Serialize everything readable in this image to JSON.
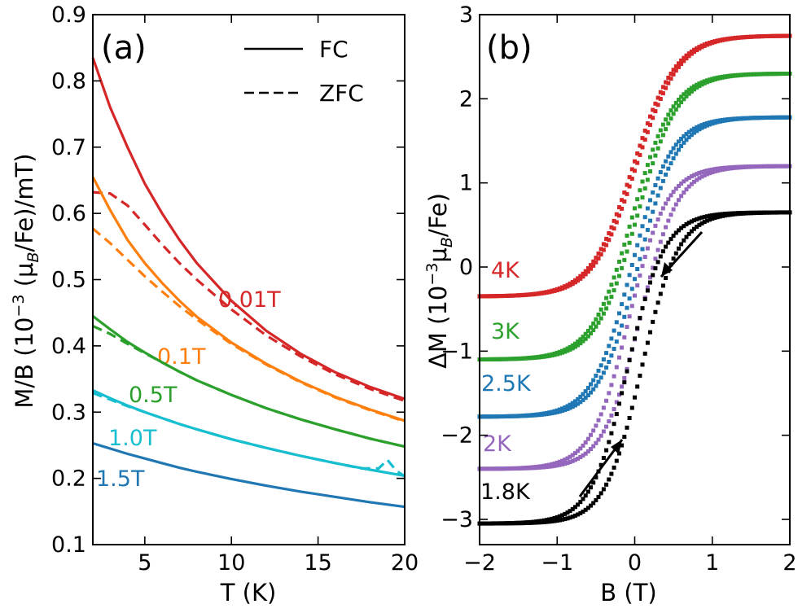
{
  "chart_data": [
    {
      "panel": "(a)",
      "type": "line",
      "xlabel": "T (K)",
      "ylabel_parts": [
        "M/B (10",
        "−3",
        " (μ",
        "B",
        "/Fe)/mT)"
      ],
      "xlim": [
        2,
        20
      ],
      "ylim": [
        0.1,
        0.9
      ],
      "xticks": [
        5,
        10,
        15,
        20
      ],
      "yticks": [
        0.1,
        0.2,
        0.3,
        0.4,
        0.5,
        0.6,
        0.7,
        0.8,
        0.9
      ],
      "legend": {
        "position": "top-right",
        "entries": [
          {
            "label": "FC",
            "style": "solid"
          },
          {
            "label": "ZFC",
            "style": "dashed"
          }
        ]
      },
      "series": [
        {
          "name": "0.01T",
          "color": "#d62728",
          "label": "0.01T",
          "fc": {
            "x": [
              2,
              3,
              4,
              5,
              6,
              7,
              8,
              10,
              12,
              14,
              16,
              18,
              20
            ],
            "y": [
              0.835,
              0.76,
              0.7,
              0.645,
              0.6,
              0.56,
              0.525,
              0.468,
              0.423,
              0.388,
              0.36,
              0.338,
              0.32
            ]
          },
          "zfc": {
            "x": [
              2,
              3,
              4,
              5,
              6,
              7,
              8,
              10,
              12,
              14,
              16,
              18,
              20
            ],
            "y": [
              0.632,
              0.63,
              0.612,
              0.583,
              0.553,
              0.525,
              0.5,
              0.455,
              0.416,
              0.384,
              0.357,
              0.335,
              0.317
            ]
          }
        },
        {
          "name": "0.1T",
          "color": "#ff7f0e",
          "label": "0.1T",
          "fc": {
            "x": [
              2,
              3,
              4,
              5,
              6,
              7,
              8,
              10,
              12,
              14,
              16,
              18,
              20
            ],
            "y": [
              0.655,
              0.605,
              0.56,
              0.525,
              0.495,
              0.468,
              0.444,
              0.405,
              0.373,
              0.346,
              0.323,
              0.304,
              0.287
            ]
          },
          "zfc": {
            "x": [
              2,
              3,
              4,
              5,
              6,
              7,
              8,
              10,
              12,
              14,
              16,
              18,
              20
            ],
            "y": [
              0.577,
              0.555,
              0.53,
              0.505,
              0.482,
              0.46,
              0.44,
              0.403,
              0.372,
              0.345,
              0.322,
              0.303,
              0.286
            ]
          }
        },
        {
          "name": "0.5T",
          "color": "#2ca02c",
          "label": "0.5T",
          "fc": {
            "x": [
              2,
              3,
              4,
              5,
              6,
              7,
              8,
              10,
              12,
              14,
              16,
              18,
              20
            ],
            "y": [
              0.445,
              0.425,
              0.406,
              0.39,
              0.375,
              0.361,
              0.348,
              0.326,
              0.306,
              0.289,
              0.274,
              0.26,
              0.248
            ]
          },
          "zfc": {
            "x": [
              2,
              3,
              4,
              5,
              6,
              7,
              8,
              10,
              12,
              14,
              16,
              18,
              20
            ],
            "y": [
              0.43,
              0.418,
              0.403,
              0.389,
              0.375,
              0.361,
              0.348,
              0.326,
              0.306,
              0.289,
              0.274,
              0.26,
              0.248
            ]
          }
        },
        {
          "name": "1.0T",
          "color": "#17becf",
          "label": "1.0T",
          "fc": {
            "x": [
              2,
              3,
              4,
              5,
              6,
              7,
              8,
              10,
              12,
              14,
              16,
              18,
              20
            ],
            "y": [
              0.333,
              0.321,
              0.31,
              0.3,
              0.291,
              0.282,
              0.274,
              0.259,
              0.246,
              0.234,
              0.223,
              0.213,
              0.204
            ]
          },
          "zfc": {
            "x": [
              2,
              3,
              4,
              5,
              6,
              7,
              8,
              10,
              12,
              14,
              16,
              17.5,
              18.5,
              19,
              19.5,
              20
            ],
            "y": [
              0.329,
              0.319,
              0.309,
              0.3,
              0.291,
              0.282,
              0.274,
              0.259,
              0.246,
              0.234,
              0.223,
              0.215,
              0.215,
              0.228,
              0.212,
              0.203
            ]
          }
        },
        {
          "name": "1.5T",
          "color": "#1f77b4",
          "label": "1.5T",
          "fc": {
            "x": [
              2,
              3,
              4,
              5,
              6,
              7,
              8,
              10,
              12,
              14,
              16,
              18,
              20
            ],
            "y": [
              0.253,
              0.245,
              0.237,
              0.23,
              0.223,
              0.216,
              0.21,
              0.199,
              0.189,
              0.18,
              0.172,
              0.164,
              0.157
            ]
          }
        }
      ]
    },
    {
      "panel": "(b)",
      "type": "scatter",
      "xlabel": "B (T)",
      "ylabel_parts": [
        "ΔM (10",
        "−3",
        "μ",
        "B",
        "/Fe)"
      ],
      "xlim": [
        -2,
        2
      ],
      "ylim": [
        -3.3,
        3
      ],
      "xticks": [
        -2,
        -1,
        0,
        1,
        2
      ],
      "xticklabels": [
        "−2",
        "−1",
        "0",
        "1",
        "2"
      ],
      "yticks": [
        -3,
        -2,
        -1,
        0,
        1,
        2,
        3
      ],
      "yticklabels": [
        "−3",
        "−2",
        "−1",
        "0",
        "1",
        "2",
        "3"
      ],
      "series": [
        {
          "name": "4K",
          "color": "#d62728",
          "offset": 1.2,
          "Ms": 1.55,
          "scale": 0.55,
          "hysteresis": 0.02,
          "label": "4K"
        },
        {
          "name": "3K",
          "color": "#2ca02c",
          "offset": 0.6,
          "Ms": 1.7,
          "scale": 0.52,
          "hysteresis": 0.03,
          "label": "3K"
        },
        {
          "name": "2.5K",
          "color": "#1f77b4",
          "offset": 0.0,
          "Ms": 1.78,
          "scale": 0.5,
          "hysteresis": 0.04,
          "label": "2.5K"
        },
        {
          "name": "2K",
          "color": "#9467bd",
          "offset": -0.6,
          "Ms": 1.8,
          "scale": 0.48,
          "hysteresis": 0.07,
          "label": "2K"
        },
        {
          "name": "1.8K",
          "color": "#000000",
          "offset": -1.2,
          "Ms": 1.85,
          "scale": 0.47,
          "hysteresis": 0.09,
          "label": "1.8K"
        }
      ]
    }
  ]
}
